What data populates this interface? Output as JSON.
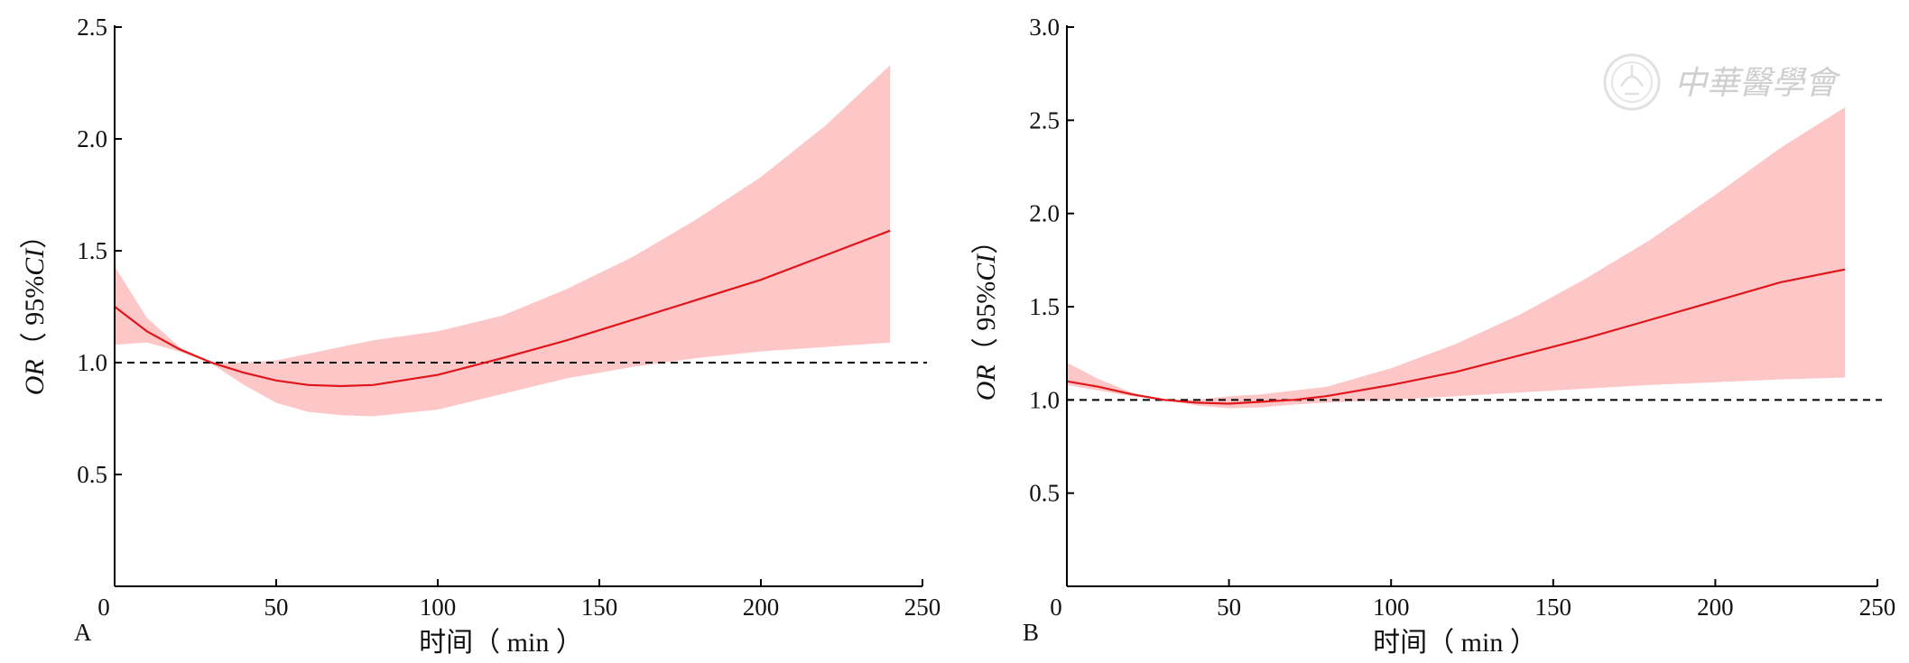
{
  "chart_data": [
    {
      "type": "line",
      "panel_label": "A",
      "xlabel": "时间（ min ）",
      "ylabel_italic": "OR",
      "ylabel_rest": "（ 95%",
      "ylabel_ci": "CI",
      "ylabel_close": "）",
      "xlim": [
        0,
        250
      ],
      "ylim": [
        0,
        2.5
      ],
      "xticks": [
        "0",
        "50",
        "100",
        "150",
        "200",
        "250"
      ],
      "xtick_values": [
        0,
        50,
        100,
        150,
        200,
        250
      ],
      "yticks": [
        "0.5",
        "1.0",
        "1.5",
        "2.0",
        "2.5"
      ],
      "ytick_values": [
        0.5,
        1.0,
        1.5,
        2.0,
        2.5
      ],
      "reference_line": 1.0,
      "colors": {
        "line": "#e0161b",
        "band": "#fdc7c8",
        "ref": "#000000"
      },
      "series": [
        {
          "x": [
            0,
            10,
            20,
            30,
            40,
            50,
            60,
            70,
            80,
            100,
            120,
            140,
            160,
            180,
            200,
            220,
            240
          ],
          "y": [
            1.25,
            1.14,
            1.06,
            1.0,
            0.955,
            0.92,
            0.9,
            0.895,
            0.9,
            0.945,
            1.02,
            1.1,
            1.19,
            1.28,
            1.37,
            1.48,
            1.59
          ],
          "lower": [
            1.08,
            1.09,
            1.05,
            0.995,
            0.9,
            0.82,
            0.78,
            0.765,
            0.76,
            0.79,
            0.86,
            0.93,
            0.98,
            1.02,
            1.05,
            1.07,
            1.09
          ],
          "upper": [
            1.43,
            1.2,
            1.07,
            1.0,
            1.0,
            1.01,
            1.04,
            1.07,
            1.1,
            1.14,
            1.21,
            1.33,
            1.47,
            1.64,
            1.83,
            2.06,
            2.33
          ]
        }
      ]
    },
    {
      "type": "line",
      "panel_label": "B",
      "xlabel": "时间（ min ）",
      "ylabel_italic": "OR",
      "ylabel_rest": "（ 95%",
      "ylabel_ci": "CI",
      "ylabel_close": "）",
      "xlim": [
        0,
        250
      ],
      "ylim": [
        0,
        3.0
      ],
      "xticks": [
        "0",
        "50",
        "100",
        "150",
        "200",
        "250"
      ],
      "xtick_values": [
        0,
        50,
        100,
        150,
        200,
        250
      ],
      "yticks": [
        "0.5",
        "1.0",
        "1.5",
        "2.0",
        "2.5",
        "3.0"
      ],
      "ytick_values": [
        0.5,
        1.0,
        1.5,
        2.0,
        2.5,
        3.0
      ],
      "reference_line": 1.0,
      "colors": {
        "line": "#e0161b",
        "band": "#fdc7c8",
        "ref": "#000000"
      },
      "series": [
        {
          "x": [
            0,
            10,
            20,
            30,
            40,
            50,
            60,
            70,
            80,
            100,
            120,
            140,
            160,
            180,
            200,
            220,
            240
          ],
          "y": [
            1.1,
            1.07,
            1.03,
            1.0,
            0.985,
            0.98,
            0.99,
            1.0,
            1.02,
            1.08,
            1.15,
            1.24,
            1.33,
            1.43,
            1.53,
            1.63,
            1.7
          ],
          "lower": [
            1.08,
            1.05,
            1.02,
            1.0,
            0.97,
            0.955,
            0.96,
            0.975,
            0.985,
            1.0,
            1.02,
            1.04,
            1.06,
            1.08,
            1.095,
            1.11,
            1.12
          ],
          "upper": [
            1.2,
            1.11,
            1.04,
            1.0,
            1.0,
            1.02,
            1.03,
            1.05,
            1.07,
            1.17,
            1.3,
            1.46,
            1.65,
            1.86,
            2.1,
            2.35,
            2.57
          ]
        }
      ]
    }
  ],
  "watermark": {
    "text": "中華醫學會",
    "icon": "society-seal-icon"
  }
}
